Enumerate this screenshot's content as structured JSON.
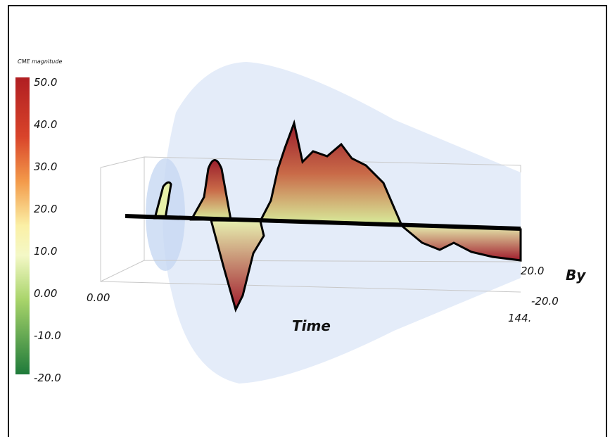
{
  "colorbar": {
    "title": "CME magnitude",
    "ticks": [
      "50.0",
      "40.0",
      "30.0",
      "20.0",
      "10.0",
      "0.00",
      "-10.0",
      "-20.0"
    ]
  },
  "axes": {
    "time": {
      "label": "Time",
      "ticks": [
        "0.00",
        "144."
      ]
    },
    "by": {
      "label": "By",
      "ticks": [
        "20.0",
        "-20.0"
      ]
    }
  }
}
